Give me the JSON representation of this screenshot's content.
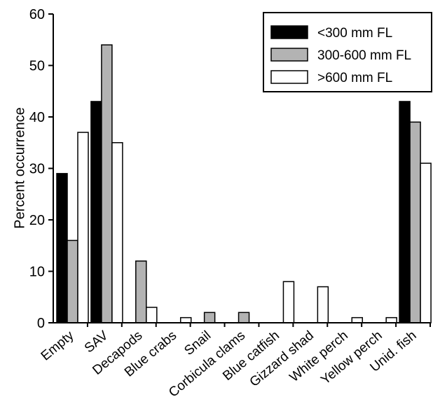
{
  "chart_data": {
    "type": "bar",
    "title": "",
    "xlabel": "",
    "ylabel": "Percent occurrence",
    "ylim": [
      0,
      60
    ],
    "yticks": [
      0,
      10,
      20,
      30,
      40,
      50,
      60
    ],
    "grid": false,
    "legend_position": "top-right",
    "categories": [
      "Empty",
      "SAV",
      "Decapods",
      "Blue crabs",
      "Snail",
      "Corbicula clams",
      "Blue catfish",
      "Gizzard shad",
      "White perch",
      "Yellow perch",
      "Unid. fish"
    ],
    "series": [
      {
        "name": "<300 mm FL",
        "color": "#000000",
        "values": [
          29,
          43,
          0,
          0,
          0,
          0,
          0,
          0,
          0,
          0,
          43
        ]
      },
      {
        "name": "300-600 mm FL",
        "color": "#b3b3b3",
        "values": [
          16,
          54,
          12,
          0,
          2,
          2,
          0,
          0,
          0,
          0,
          39
        ]
      },
      {
        "name": ">600 mm FL",
        "color": "#ffffff",
        "values": [
          37,
          35,
          3,
          1,
          0,
          0,
          8,
          7,
          1,
          1,
          31
        ]
      }
    ]
  }
}
